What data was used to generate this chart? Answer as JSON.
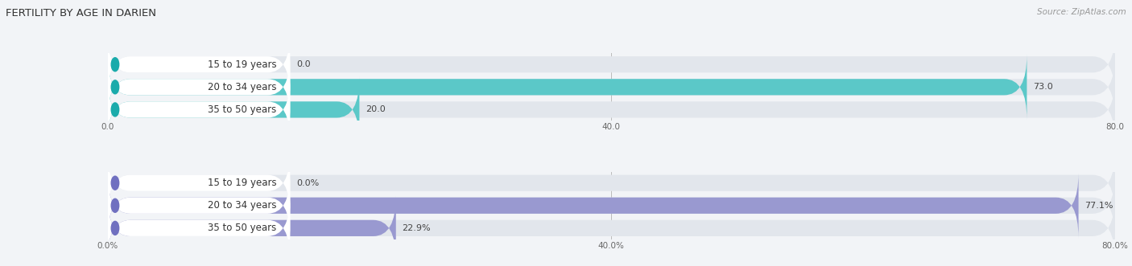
{
  "title": "FERTILITY BY AGE IN DARIEN",
  "source": "Source: ZipAtlas.com",
  "top_section": {
    "categories": [
      "15 to 19 years",
      "20 to 34 years",
      "35 to 50 years"
    ],
    "values": [
      0.0,
      73.0,
      20.0
    ],
    "max_value": 80.0,
    "tick_values": [
      0.0,
      40.0,
      80.0
    ],
    "tick_labels": [
      "0.0",
      "40.0",
      "80.0"
    ],
    "bar_color_dark": "#1aabab",
    "bar_color_light": "#5bc8c8",
    "bg_color": "#f2f4f7",
    "bar_bg_color": "#e2e6ec"
  },
  "bottom_section": {
    "categories": [
      "15 to 19 years",
      "20 to 34 years",
      "35 to 50 years"
    ],
    "values": [
      0.0,
      77.1,
      22.9
    ],
    "max_value": 80.0,
    "tick_values": [
      0.0,
      40.0,
      80.0
    ],
    "tick_labels": [
      "0.0%",
      "40.0%",
      "80.0%"
    ],
    "bar_color_dark": "#7070c0",
    "bar_color_light": "#9999d0",
    "bg_color": "#f2f4f7",
    "bar_bg_color": "#e2e6ec"
  },
  "label_fontsize": 8.5,
  "value_fontsize": 8.0,
  "title_fontsize": 9.5,
  "source_fontsize": 7.5
}
